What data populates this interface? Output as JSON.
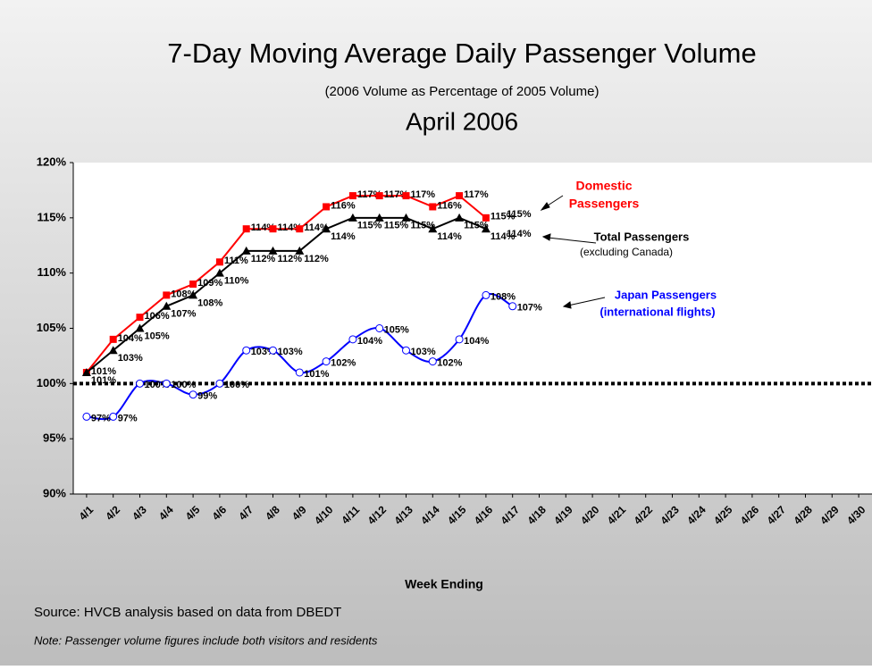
{
  "chart_data": {
    "type": "line",
    "title": "7-Day Moving Average Daily Passenger Volume",
    "subtitle": "(2006 Volume as Percentage of 2005 Volume)",
    "period": "April 2006",
    "x_label": "Week Ending",
    "source": "Source:  HVCB analysis based on data from DBEDT",
    "note": "Note: Passenger volume figures include both visitors and residents",
    "categories": [
      "4/1",
      "4/2",
      "4/3",
      "4/4",
      "4/5",
      "4/6",
      "4/7",
      "4/8",
      "4/9",
      "4/10",
      "4/11",
      "4/12",
      "4/13",
      "4/14",
      "4/15",
      "4/16",
      "4/17",
      "4/18",
      "4/19",
      "4/20",
      "4/21",
      "4/22",
      "4/23",
      "4/24",
      "4/25",
      "4/26",
      "4/27",
      "4/28",
      "4/29",
      "4/30"
    ],
    "series": [
      {
        "name": "Domestic Passengers",
        "color": "#ff0000",
        "marker": "square",
        "values": [
          101,
          104,
          106,
          108,
          109,
          111,
          114,
          114,
          114,
          116,
          117,
          117,
          117,
          116,
          117,
          115,
          null,
          null,
          null,
          null,
          null,
          null,
          null,
          null,
          null,
          null,
          null,
          null,
          null,
          null
        ],
        "value_labels": [
          "101%",
          "104%",
          "106%",
          "108%",
          "109%",
          "111%",
          "114%",
          "114%",
          "114%",
          "116%",
          "117%",
          "117%",
          "117%",
          "116%",
          "117%",
          "115%",
          null,
          null,
          null,
          null,
          null,
          null,
          null,
          null,
          null,
          null,
          null,
          null,
          null,
          null
        ]
      },
      {
        "name": "Total Passengers",
        "color": "#000000",
        "marker": "triangle",
        "values": [
          101,
          103,
          105,
          107,
          108,
          110,
          112,
          112,
          112,
          114,
          115,
          115,
          115,
          114,
          115,
          114,
          null,
          null,
          null,
          null,
          null,
          null,
          null,
          null,
          null,
          null,
          null,
          null,
          null,
          null
        ],
        "value_labels": [
          "101%",
          "103%",
          "105%",
          "107%",
          "108%",
          "110%",
          "112%",
          "112%",
          "112%",
          "114%",
          "115%",
          "115%",
          "115%",
          "114%",
          "115%",
          "114%",
          null,
          null,
          null,
          null,
          null,
          null,
          null,
          null,
          null,
          null,
          null,
          null,
          null,
          null
        ]
      },
      {
        "name": "Japan Passengers",
        "color": "#0000ff",
        "marker": "circle",
        "smooth": true,
        "values": [
          97,
          97,
          100,
          100,
          99,
          100,
          103,
          103,
          101,
          102,
          104,
          105,
          103,
          102,
          104,
          108,
          107,
          null,
          null,
          null,
          null,
          null,
          null,
          null,
          null,
          null,
          null,
          null,
          null,
          null
        ],
        "value_labels": [
          "97%",
          "97%",
          "100%",
          "100%",
          "99%",
          "100%",
          "103%",
          "103%",
          "101%",
          "102%",
          "104%",
          "105%",
          "103%",
          "102%",
          "104%",
          "108%",
          "107%",
          null,
          null,
          null,
          null,
          null,
          null,
          null,
          null,
          null,
          null,
          null,
          null,
          null
        ]
      }
    ],
    "series_notes": [
      [
        "Domestic",
        "Passengers"
      ],
      [
        "(excluding Canada)"
      ],
      [
        "(international flights)"
      ]
    ],
    "end_labels": [
      "115%",
      "114%"
    ],
    "reference_line": 100,
    "ylim": [
      90,
      120
    ],
    "yticks": [
      {
        "value": 90,
        "label": "90%"
      },
      {
        "value": 95,
        "label": "95%"
      },
      {
        "value": 100,
        "label": "100%"
      },
      {
        "value": 105,
        "label": "105%"
      },
      {
        "value": 110,
        "label": "110%"
      },
      {
        "value": 115,
        "label": "115%"
      },
      {
        "value": 120,
        "label": "120%"
      }
    ]
  }
}
